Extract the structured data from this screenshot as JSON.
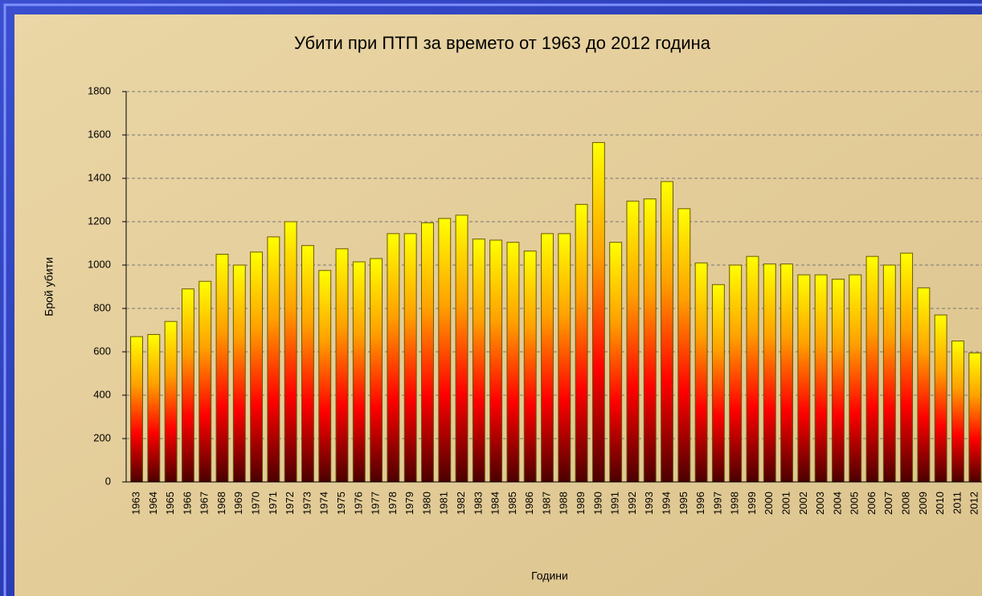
{
  "chart_data": {
    "type": "bar",
    "title": "Убити при ПТП за времето от 1963 до 2012 година",
    "x_label": "Години",
    "y_label": "Брой убити",
    "categories": [
      "1963",
      "1964",
      "1965",
      "1966",
      "1967",
      "1968",
      "1969",
      "1970",
      "1971",
      "1972",
      "1973",
      "1974",
      "1975",
      "1976",
      "1977",
      "1978",
      "1979",
      "1980",
      "1981",
      "1982",
      "1983",
      "1984",
      "1985",
      "1986",
      "1987",
      "1988",
      "1989",
      "1990",
      "1991",
      "1992",
      "1993",
      "1994",
      "1995",
      "1996",
      "1997",
      "1998",
      "1999",
      "2000",
      "2001",
      "2002",
      "2003",
      "2004",
      "2005",
      "2006",
      "2007",
      "2008",
      "2009",
      "2010",
      "2011",
      "2012"
    ],
    "values": [
      670,
      680,
      740,
      890,
      925,
      1050,
      1000,
      1060,
      1130,
      1200,
      1090,
      975,
      1075,
      1015,
      1030,
      1145,
      1145,
      1195,
      1215,
      1230,
      1120,
      1115,
      1105,
      1065,
      1145,
      1145,
      1280,
      1565,
      1105,
      1295,
      1305,
      1385,
      1260,
      1010,
      910,
      1000,
      1040,
      1005,
      1005,
      955,
      955,
      935,
      955,
      1040,
      1000,
      1055,
      895,
      770,
      650,
      595
    ],
    "color": [
      "#ffff00",
      "#ffa000",
      "#ff0000",
      "#4a0000"
    ],
    "ylim": [
      0,
      1800
    ],
    "yticks": [
      0,
      200,
      400,
      600,
      800,
      1000,
      1200,
      1400,
      1600,
      1800
    ],
    "grid": true
  }
}
